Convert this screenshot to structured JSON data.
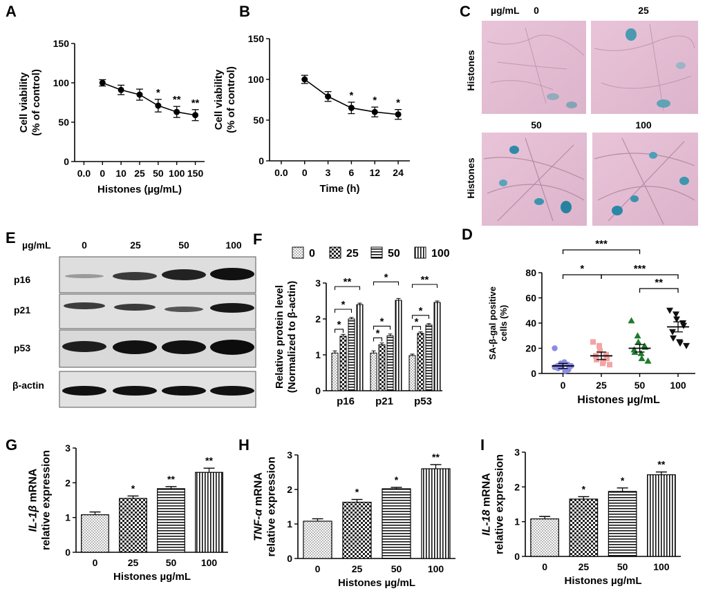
{
  "panels": {
    "A": {
      "letter": "A"
    },
    "B": {
      "letter": "B"
    },
    "C": {
      "letter": "C",
      "unit": "µg/mL",
      "concentrations": [
        "0",
        "25",
        "50",
        "100"
      ],
      "row_label": "Histones"
    },
    "D": {
      "letter": "D"
    },
    "E": {
      "letter": "E",
      "unit": "µg/mL",
      "concentrations": [
        "0",
        "25",
        "50",
        "100"
      ],
      "rows": [
        "p16",
        "p21",
        "p53",
        "β-actin"
      ]
    },
    "F": {
      "letter": "F"
    },
    "G": {
      "letter": "G"
    },
    "H": {
      "letter": "H"
    },
    "I": {
      "letter": "I"
    }
  },
  "chart_data": [
    {
      "id": "A",
      "type": "line",
      "x": [
        "0.0",
        "0",
        "10",
        "25",
        "50",
        "100",
        "150"
      ],
      "x_tick_labels": [
        "0.0",
        "0",
        "10",
        "25",
        "50",
        "100",
        "150"
      ],
      "series": [
        {
          "values": [
            null,
            100,
            91,
            85,
            71,
            63,
            59
          ],
          "errors": [
            null,
            4,
            6,
            7,
            8,
            7,
            7
          ]
        }
      ],
      "significance": [
        null,
        "",
        "",
        "",
        "*",
        "**",
        "**"
      ],
      "ylabel": "Cell viability (% of control)",
      "xlabel": "Histones (µg/mL)",
      "ylim": [
        0,
        150
      ],
      "yticks": [
        "0",
        "50",
        "100",
        "150"
      ]
    },
    {
      "id": "B",
      "type": "line",
      "x": [
        "0.0",
        "0",
        "3",
        "6",
        "12",
        "24"
      ],
      "x_tick_labels": [
        "0.0",
        "0",
        "3",
        "6",
        "12",
        "24"
      ],
      "series": [
        {
          "values": [
            null,
            100,
            79,
            65,
            60,
            57
          ],
          "errors": [
            null,
            5,
            6,
            7,
            6,
            6
          ]
        }
      ],
      "significance": [
        null,
        "",
        "",
        "*",
        "*",
        "*"
      ],
      "ylabel": "Cell viability (% of control)",
      "xlabel": "Time (h)",
      "ylim": [
        0,
        150
      ],
      "yticks": [
        "0",
        "50",
        "100",
        "150"
      ]
    },
    {
      "id": "D",
      "type": "scatter",
      "categories": [
        "0",
        "25",
        "50",
        "100"
      ],
      "series": [
        {
          "category": "0",
          "color": "#8b8be6",
          "marker": "circle",
          "points": [
            20,
            8,
            5,
            7,
            3,
            6,
            4,
            9,
            2,
            6,
            5
          ],
          "mean": 6,
          "sem": 2
        },
        {
          "category": "25",
          "color": "#f4a4a4",
          "marker": "square",
          "points": [
            25,
            22,
            18,
            15,
            12,
            14,
            11,
            8,
            10,
            7
          ],
          "mean": 14,
          "sem": 3
        },
        {
          "category": "50",
          "color": "#1f7a2e",
          "marker": "triangle-up",
          "points": [
            42,
            30,
            25,
            22,
            21,
            19,
            17,
            16,
            12,
            10
          ],
          "mean": 20,
          "sem": 3
        },
        {
          "category": "100",
          "color": "#111111",
          "marker": "triangle-down",
          "points": [
            50,
            47,
            43,
            40,
            38,
            33,
            28,
            25,
            24,
            22
          ],
          "mean": 37,
          "sem": 4
        }
      ],
      "brackets": [
        {
          "from": "0",
          "to": "50",
          "label": "***"
        },
        {
          "from": "0",
          "to": "25",
          "label": "*"
        },
        {
          "from": "25",
          "to": "100",
          "label": "***"
        },
        {
          "from": "50",
          "to": "100",
          "label": "**"
        }
      ],
      "ylabel": "SA-β-gal positive cells (%)",
      "xlabel": "Histones µg/mL",
      "ylim": [
        0,
        80
      ],
      "yticks": [
        "0",
        "20",
        "40",
        "60",
        "80"
      ]
    },
    {
      "id": "F",
      "type": "bar",
      "categories": [
        "p16",
        "p21",
        "p53"
      ],
      "legend": [
        "0",
        "25",
        "50",
        "100"
      ],
      "series": [
        {
          "name": "0",
          "pattern": "dots",
          "values": [
            1.05,
            1.05,
            0.98
          ],
          "errors": [
            0.06,
            0.06,
            0.04
          ]
        },
        {
          "name": "25",
          "pattern": "check",
          "values": [
            1.52,
            1.28,
            1.6
          ],
          "errors": [
            0.05,
            0.05,
            0.04
          ]
        },
        {
          "name": "50",
          "pattern": "hlines",
          "values": [
            2.0,
            1.53,
            1.83
          ],
          "errors": [
            0.04,
            0.05,
            0.04
          ]
        },
        {
          "name": "100",
          "pattern": "vlines",
          "values": [
            2.4,
            2.52,
            2.46
          ],
          "errors": [
            0.04,
            0.05,
            0.04
          ]
        }
      ],
      "brackets": [
        {
          "group": "p16",
          "from": "0",
          "to": "25",
          "label": "*"
        },
        {
          "group": "p16",
          "from": "0",
          "to": "50",
          "label": "*"
        },
        {
          "group": "p16",
          "from": "0",
          "to": "100",
          "label": "**"
        },
        {
          "group": "p21",
          "from": "0",
          "to": "25",
          "label": "*"
        },
        {
          "group": "p21",
          "from": "0",
          "to": "50",
          "label": "*"
        },
        {
          "group": "p21",
          "from": "0",
          "to": "100",
          "label": "*"
        },
        {
          "group": "p53",
          "from": "0",
          "to": "25",
          "label": "*"
        },
        {
          "group": "p53",
          "from": "0",
          "to": "50",
          "label": "*"
        },
        {
          "group": "p53",
          "from": "0",
          "to": "100",
          "label": "**"
        }
      ],
      "ylabel": "Relative protein level (Normalized to β-actin)",
      "ylim": [
        0,
        3
      ],
      "yticks": [
        "0",
        "1",
        "2",
        "3"
      ]
    },
    {
      "id": "G",
      "type": "bar",
      "categories": [
        "0",
        "25",
        "50",
        "100"
      ],
      "values": [
        1.08,
        1.55,
        1.83,
        2.3
      ],
      "errors": [
        0.08,
        0.07,
        0.06,
        0.12
      ],
      "patterns": [
        "dots",
        "check",
        "hlines",
        "vlines"
      ],
      "significance": [
        "",
        "*",
        "**",
        "**"
      ],
      "ylabel_italic": "IL-1β",
      "ylabel_rest": " mRNA",
      "ylabel2": "relative expression",
      "xlabel": "Histones µg/mL",
      "ylim": [
        0,
        3
      ],
      "yticks": [
        "0",
        "1",
        "2",
        "3"
      ]
    },
    {
      "id": "H",
      "type": "bar",
      "categories": [
        "0",
        "25",
        "50",
        "100"
      ],
      "values": [
        1.08,
        1.63,
        2.02,
        2.6
      ],
      "errors": [
        0.07,
        0.08,
        0.04,
        0.12
      ],
      "patterns": [
        "dots",
        "check",
        "hlines",
        "vlines"
      ],
      "significance": [
        "",
        "*",
        "*",
        "**"
      ],
      "ylabel_italic": "TNF-α",
      "ylabel_rest": " mRNA",
      "ylabel2": "relative expression",
      "xlabel": "Histones µg/mL",
      "ylim": [
        0,
        3
      ],
      "yticks": [
        "0",
        "1",
        "2",
        "3"
      ]
    },
    {
      "id": "I",
      "type": "bar",
      "categories": [
        "0",
        "25",
        "50",
        "100"
      ],
      "values": [
        1.08,
        1.65,
        1.87,
        2.35
      ],
      "errors": [
        0.07,
        0.07,
        0.1,
        0.08
      ],
      "patterns": [
        "dots",
        "check",
        "hlines",
        "vlines"
      ],
      "significance": [
        "",
        "*",
        "*",
        "**"
      ],
      "ylabel_italic": "IL-18",
      "ylabel_rest": " mRNA",
      "ylabel2": "relative expression",
      "xlabel": "Histones µg/mL",
      "ylim": [
        0,
        3
      ],
      "yticks": [
        "0",
        "1",
        "2",
        "3"
      ]
    }
  ]
}
